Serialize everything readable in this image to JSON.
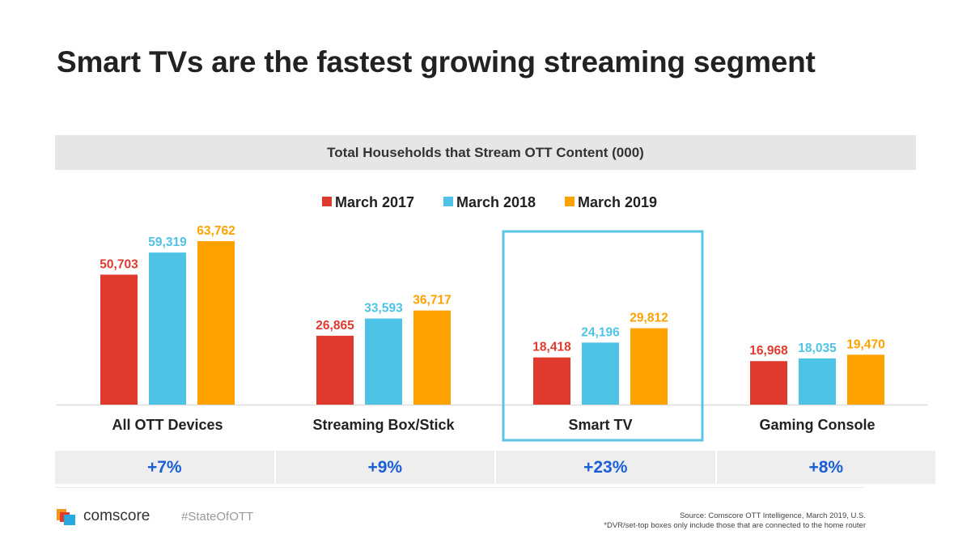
{
  "title": "Smart TVs are the fastest growing streaming segment",
  "chart_data": {
    "type": "bar",
    "title": "Total Households that Stream OTT Content (000)",
    "categories": [
      "All OTT Devices",
      "Streaming Box/Stick",
      "Smart TV",
      "Gaming Console"
    ],
    "series": [
      {
        "name": "March 2017",
        "color": "#e03a2f",
        "values": [
          50703,
          26865,
          18418,
          16968
        ],
        "labels": [
          "50,703",
          "26,865",
          "18,418",
          "16,968"
        ]
      },
      {
        "name": "March 2018",
        "color": "#4fc3e6",
        "values": [
          59319,
          33593,
          24196,
          18035
        ],
        "labels": [
          "59,319",
          "33,593",
          "24,196",
          "18,035"
        ]
      },
      {
        "name": "March 2019",
        "color": "#ffa200",
        "values": [
          63762,
          36717,
          29812,
          19470
        ],
        "labels": [
          "63,762",
          "36,717",
          "29,812",
          "19,470"
        ]
      }
    ],
    "ylim": [
      0,
      70000
    ],
    "grid": false,
    "legend": "top-center",
    "highlighted_category": "Smart TV",
    "highlight_color": "#5bc5e4",
    "growth": [
      "+7%",
      "+9%",
      "+23%",
      "+8%"
    ]
  },
  "footer": {
    "brand": "comscore",
    "hashtag": "#StateOfOTT",
    "source": "Source: Comscore OTT Intelligence, March 2019, U.S.",
    "note": "*DVR/set-top boxes only include those that are connected to the home router"
  }
}
